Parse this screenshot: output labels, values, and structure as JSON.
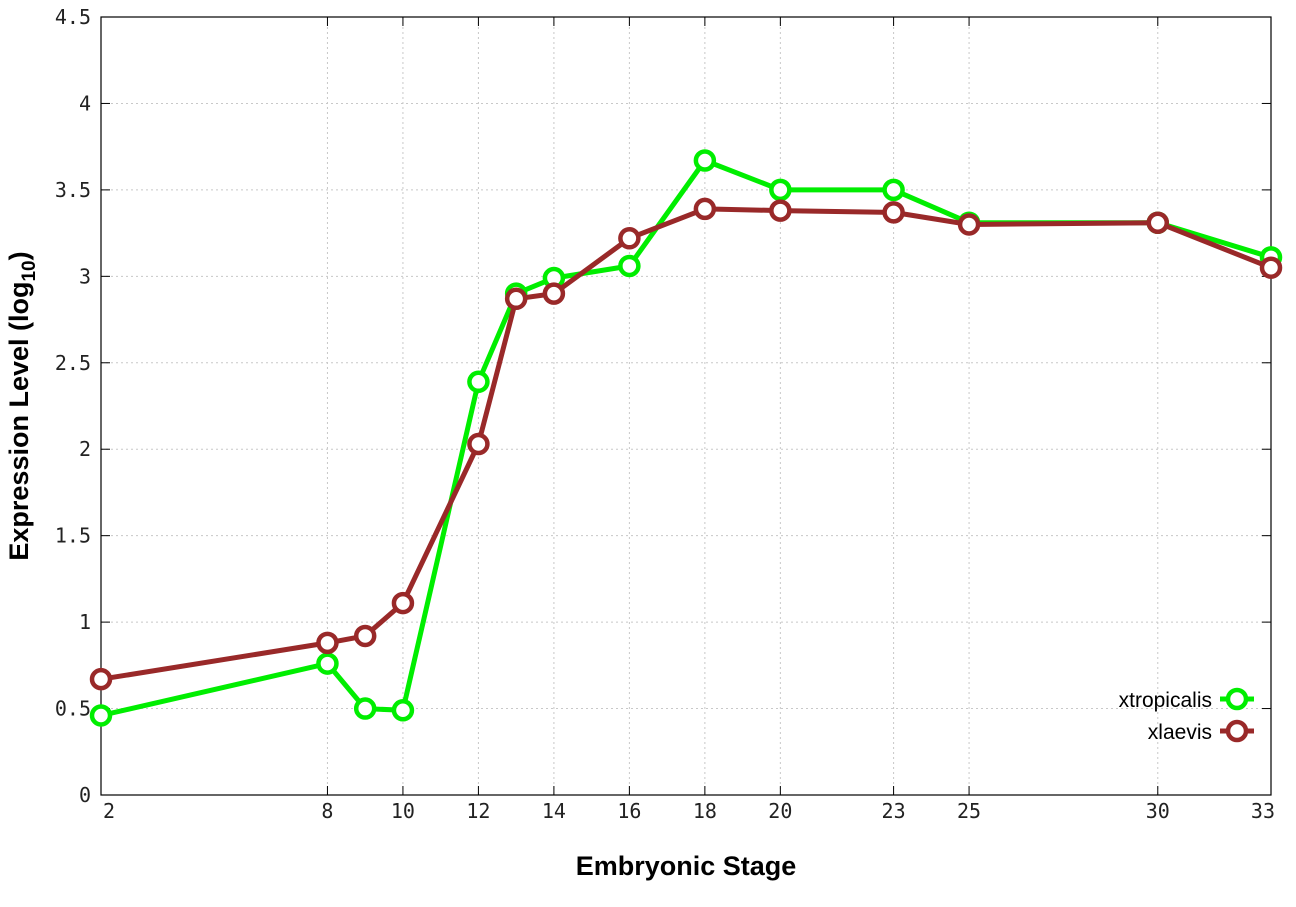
{
  "chart_data": {
    "type": "line",
    "xlabel": "Embryonic Stage",
    "ylabel": {
      "main": "Expression Level (log",
      "subscript": "10",
      "close": ")"
    },
    "x_ticks": [
      2,
      8,
      10,
      12,
      14,
      16,
      18,
      20,
      23,
      25,
      30,
      33
    ],
    "x_tick_labels": [
      "2",
      "8",
      "10",
      "12",
      "14",
      "16",
      "18",
      "20",
      "23",
      "25",
      "30",
      "33"
    ],
    "y_ticks": [
      0,
      0.5,
      1,
      1.5,
      2,
      2.5,
      3,
      3.5,
      4,
      4.5
    ],
    "y_tick_labels": [
      "0",
      "0.5",
      "1",
      "1.5",
      "2",
      "2.5",
      "3",
      "3.5",
      "4",
      "4.5"
    ],
    "ylim": [
      0,
      4.5
    ],
    "grid": true,
    "legend_position": "bottom-right",
    "series": [
      {
        "name": "xtropicalis",
        "color": "#00ee00",
        "x": [
          2,
          8,
          9,
          10,
          12,
          13,
          14,
          16,
          18,
          20,
          23,
          25,
          30,
          33
        ],
        "values": [
          0.46,
          0.76,
          0.5,
          0.49,
          2.39,
          2.9,
          2.99,
          3.06,
          3.67,
          3.5,
          3.5,
          3.31,
          3.31,
          3.11
        ]
      },
      {
        "name": "xlaevis",
        "color": "#992929",
        "x": [
          2,
          8,
          9,
          10,
          12,
          13,
          14,
          16,
          18,
          20,
          23,
          25,
          30,
          33
        ],
        "values": [
          0.67,
          0.88,
          0.92,
          1.11,
          2.03,
          2.87,
          2.9,
          3.22,
          3.39,
          3.38,
          3.37,
          3.3,
          3.31,
          3.05
        ]
      }
    ]
  }
}
